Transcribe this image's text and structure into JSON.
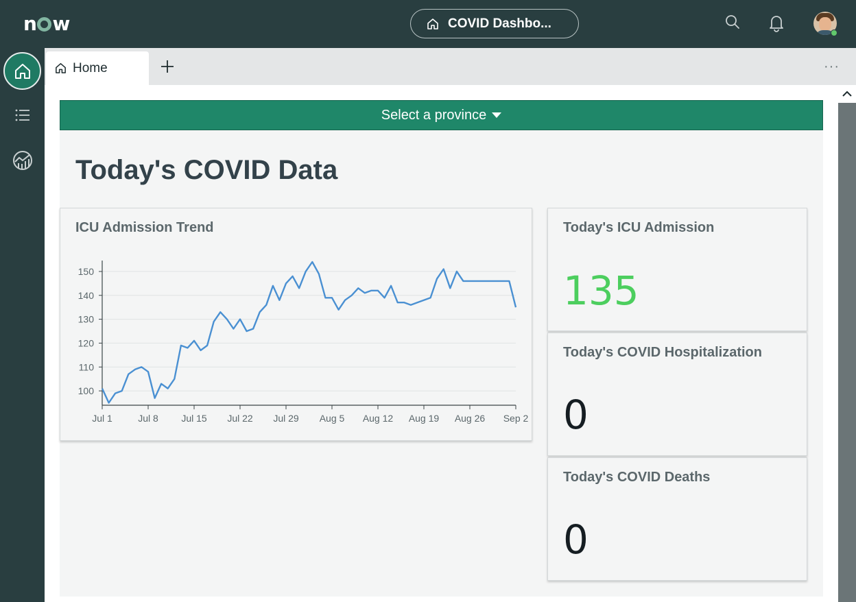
{
  "header": {
    "logo_text": "now",
    "page_title": "COVID Dashbo...",
    "icons": [
      "search-icon",
      "bell-icon",
      "avatar"
    ]
  },
  "rail": {
    "items": [
      "home-icon",
      "list-icon",
      "analytics-icon"
    ]
  },
  "tabs": {
    "items": [
      {
        "label": "Home",
        "icon": "home-icon"
      }
    ],
    "add_icon": "plus-icon",
    "more": "···"
  },
  "content": {
    "province_select": "Select a province",
    "title": "Today's COVID Data",
    "chart_card_title": "ICU Admission Trend",
    "stats": [
      {
        "title": "Today's ICU Admission",
        "value": "135"
      },
      {
        "title": "Today's COVID Hospitalization",
        "value": "0"
      },
      {
        "title": "Today's COVID Deaths",
        "value": "0"
      }
    ]
  },
  "colors": {
    "header_bg": "#293e40",
    "accent_green": "#1f8769",
    "line": "#4a90d2",
    "stat_green": "#4cce5e"
  },
  "chart_data": {
    "type": "line",
    "title": "ICU Admission Trend",
    "xlabel": "",
    "ylabel": "",
    "x_ticks": [
      "Jul 1",
      "Jul 8",
      "Jul 15",
      "Jul 22",
      "Jul 29",
      "Aug 5",
      "Aug 12",
      "Aug 19",
      "Aug 26",
      "Sep 2"
    ],
    "y_ticks": [
      100,
      110,
      120,
      130,
      140,
      150
    ],
    "xlim": [
      "Jul 1",
      "Sep 2"
    ],
    "ylim": [
      94,
      154
    ],
    "grid": true,
    "series": [
      {
        "x": [
          "Jul 1",
          "Jul 2",
          "Jul 3",
          "Jul 4",
          "Jul 5",
          "Jul 6",
          "Jul 7",
          "Jul 8",
          "Jul 9",
          "Jul 10",
          "Jul 11",
          "Jul 12",
          "Jul 13",
          "Jul 14",
          "Jul 15",
          "Jul 16",
          "Jul 17",
          "Jul 18",
          "Jul 19",
          "Jul 20",
          "Jul 21",
          "Jul 22",
          "Jul 23",
          "Jul 24",
          "Jul 25",
          "Jul 26",
          "Jul 27",
          "Jul 28",
          "Jul 29",
          "Jul 30",
          "Jul 31",
          "Aug 1",
          "Aug 2",
          "Aug 3",
          "Aug 4",
          "Aug 5",
          "Aug 6",
          "Aug 7",
          "Aug 8",
          "Aug 9",
          "Aug 10",
          "Aug 11",
          "Aug 12",
          "Aug 13",
          "Aug 14",
          "Aug 15",
          "Aug 16",
          "Aug 17",
          "Aug 18",
          "Aug 19",
          "Aug 20",
          "Aug 21",
          "Aug 22",
          "Aug 23",
          "Aug 24",
          "Aug 25",
          "Aug 26",
          "Aug 27",
          "Aug 28",
          "Aug 29",
          "Aug 30",
          "Aug 31",
          "Sep 1",
          "Sep 2"
        ],
        "values": [
          101,
          95,
          99,
          100,
          107,
          109,
          110,
          108,
          97,
          103,
          101,
          105,
          119,
          118,
          121,
          117,
          119,
          129,
          133,
          130,
          126,
          130,
          125,
          126,
          133,
          136,
          144,
          138,
          145,
          148,
          143,
          150,
          154,
          149,
          139,
          139,
          134,
          138,
          140,
          143,
          141,
          142,
          142,
          139,
          144,
          137,
          137,
          136,
          137,
          138,
          139,
          147,
          151,
          143,
          150,
          146,
          146,
          146,
          146,
          146,
          146,
          146,
          146,
          135
        ]
      }
    ]
  }
}
